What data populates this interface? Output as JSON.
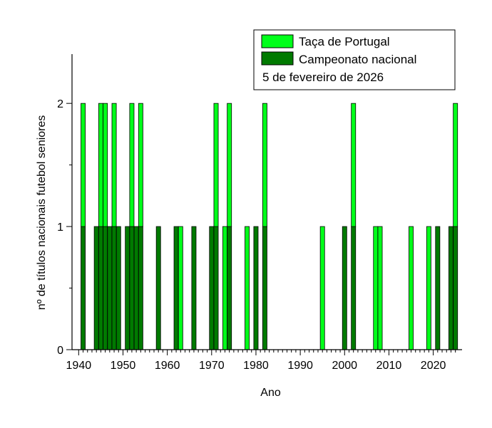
{
  "chart_data": {
    "type": "bar",
    "stacked": true,
    "xlabel": "Ano",
    "ylabel": "nº de títulos nacionais futebol seniores",
    "xlim": [
      1938.5,
      2026.5
    ],
    "ylim": [
      0,
      2.4
    ],
    "x_ticks": [
      1940,
      1950,
      1960,
      1970,
      1980,
      1990,
      2000,
      2010,
      2020
    ],
    "y_ticks": [
      0,
      1,
      2
    ],
    "legend_position": "top-right",
    "legend_note": "5 de fevereiro de 2026",
    "colors": {
      "cup": "#00ff1a",
      "league": "#007a00"
    },
    "series": [
      {
        "name": "Campeonato nacional",
        "x": [
          1941,
          1944,
          1945,
          1946,
          1947,
          1948,
          1949,
          1951,
          1952,
          1953,
          1954,
          1958,
          1962,
          1966,
          1970,
          1971,
          1974,
          1980,
          1982,
          2000,
          2002,
          2021,
          2024,
          2025
        ],
        "values": [
          1,
          1,
          1,
          1,
          1,
          1,
          1,
          1,
          1,
          1,
          1,
          1,
          1,
          1,
          1,
          1,
          1,
          1,
          1,
          1,
          1,
          1,
          1,
          1
        ]
      },
      {
        "name": "Taça de Portugal",
        "x": [
          1941,
          1945,
          1946,
          1948,
          1952,
          1954,
          1963,
          1971,
          1973,
          1974,
          1978,
          1982,
          1995,
          2002,
          2007,
          2008,
          2015,
          2019,
          2025
        ],
        "values": [
          1,
          1,
          1,
          1,
          1,
          1,
          1,
          1,
          1,
          1,
          1,
          1,
          1,
          1,
          1,
          1,
          1,
          1,
          1
        ]
      }
    ]
  }
}
